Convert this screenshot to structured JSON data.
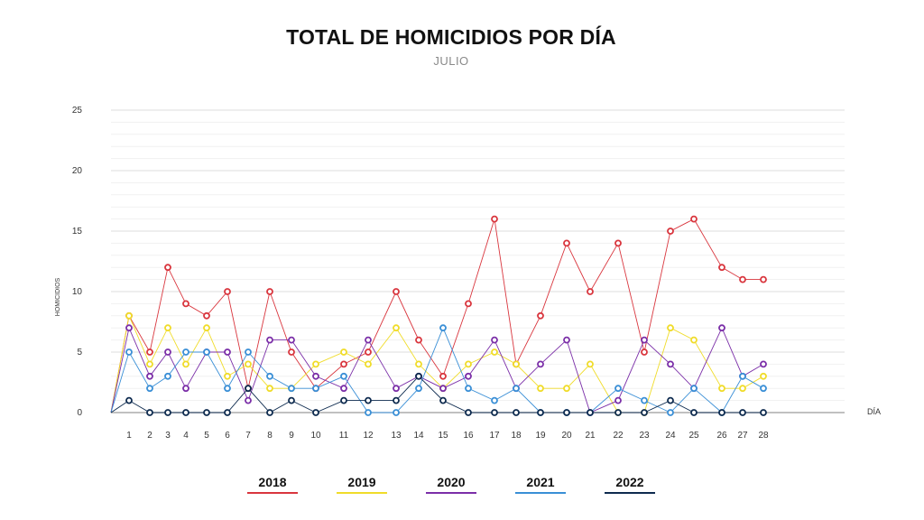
{
  "chart_data": {
    "type": "line",
    "title": "TOTAL DE HOMICIDIOS POR DÍA",
    "subtitle": "JULIO",
    "xlabel": "DÍA",
    "ylabel": "HOMICIDIOS",
    "ylim": [
      0,
      25
    ],
    "yticks": [
      0,
      5,
      10,
      15,
      20,
      25
    ],
    "x": [
      0,
      1,
      2,
      3,
      4,
      5,
      6,
      7,
      8,
      9,
      10,
      11,
      12,
      13,
      14,
      15,
      16,
      17,
      18,
      19,
      20,
      21,
      22,
      23,
      24,
      25,
      26,
      27,
      28
    ],
    "xtick_labels": [
      "1",
      "2",
      "3",
      "4",
      "5",
      "6",
      "7",
      "8",
      "9",
      "10",
      "11",
      "12",
      "13",
      "14",
      "15",
      "16",
      "17",
      "18",
      "19",
      "20",
      "21",
      "22",
      "23",
      "24",
      "25",
      "26",
      "27",
      "28"
    ],
    "grid": "horizontal",
    "legend_position": "bottom",
    "series": [
      {
        "name": "2018",
        "color": "#d9363e",
        "values": [
          0,
          8,
          5,
          12,
          9,
          8,
          10,
          2,
          10,
          5,
          2,
          4,
          5,
          10,
          6,
          3,
          9,
          16,
          4,
          8,
          14,
          10,
          14,
          5,
          15,
          16,
          12,
          11,
          11
        ]
      },
      {
        "name": "2019",
        "color": "#f0dc2a",
        "values": [
          0,
          8,
          4,
          7,
          4,
          7,
          3,
          4,
          2,
          2,
          4,
          5,
          4,
          7,
          4,
          2,
          4,
          5,
          4,
          2,
          2,
          4,
          0,
          0,
          7,
          6,
          2,
          2,
          3
        ]
      },
      {
        "name": "2020",
        "color": "#7b2fa8",
        "values": [
          0,
          7,
          3,
          5,
          2,
          5,
          5,
          1,
          6,
          6,
          3,
          2,
          6,
          2,
          3,
          2,
          3,
          6,
          2,
          4,
          6,
          0,
          1,
          6,
          4,
          2,
          7,
          3,
          4
        ]
      },
      {
        "name": "2021",
        "color": "#3a8fd6",
        "values": [
          0,
          5,
          2,
          3,
          5,
          5,
          2,
          5,
          3,
          2,
          2,
          3,
          0,
          0,
          2,
          7,
          2,
          1,
          2,
          0,
          0,
          0,
          2,
          1,
          0,
          2,
          0,
          3,
          2
        ]
      },
      {
        "name": "2022",
        "color": "#0e2b4f",
        "values": [
          0,
          1,
          0,
          0,
          0,
          0,
          0,
          2,
          0,
          1,
          0,
          1,
          1,
          1,
          3,
          1,
          0,
          0,
          0,
          0,
          0,
          0,
          0,
          0,
          1,
          0,
          0,
          0,
          0
        ]
      }
    ]
  }
}
